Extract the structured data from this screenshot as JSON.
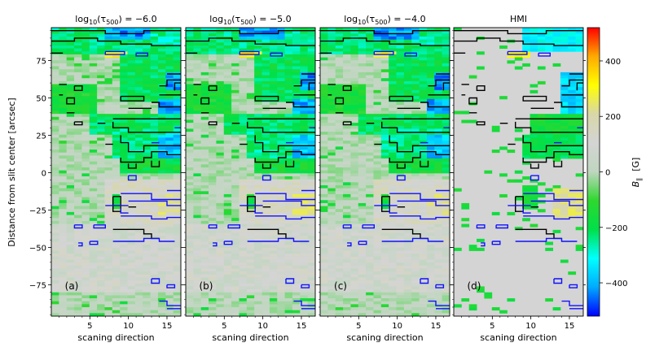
{
  "chart_data": {
    "type": "heatmap",
    "ylabel": "Distance from slit center [arcsec]",
    "colorbar": {
      "label": "B∥ [G]",
      "label_main": "B",
      "label_sub": "∥",
      "label_unit": "[G]",
      "range": [
        -520,
        520
      ],
      "ticks": [
        "400",
        "200",
        "0",
        "−200",
        "−400"
      ],
      "tick_values": [
        400,
        200,
        0,
        -200,
        -400
      ],
      "stops": [
        "#0000ff",
        "#00aaff",
        "#00ffff",
        "#00e04a",
        "#2ed82e",
        "#bfd6bf",
        "#d4d4d4",
        "#d8d7a8",
        "#ffff00",
        "#ffaa00",
        "#ff0000"
      ]
    },
    "contour_levels_description": "black: B∥ = −100 G, blue: B∥ = +100 G",
    "xlim": [
      0,
      16.8
    ],
    "ylim": [
      -96,
      97
    ],
    "x_ticks": [
      "5",
      "10",
      "15"
    ],
    "x_tick_values": [
      5,
      10,
      15
    ],
    "y_ticks": [
      "75",
      "50",
      "25",
      "0",
      "−25",
      "−50",
      "−75"
    ],
    "y_tick_values": [
      75,
      50,
      25,
      0,
      -25,
      -50,
      -75
    ],
    "panels": [
      {
        "title": "log10(τ500) = −6.0",
        "title_pre": "log",
        "title_sub": "10",
        "title_post": "(τ",
        "title_sub2": "500",
        "title_end": ") = −6.0",
        "label": "(a)",
        "xlabel": "scaning direction"
      },
      {
        "title": "log10(τ500) = −5.0",
        "title_pre": "log",
        "title_sub": "10",
        "title_post": "(τ",
        "title_sub2": "500",
        "title_end": ") = −5.0",
        "label": "(b)",
        "xlabel": "scaning direction"
      },
      {
        "title": "log10(τ500) = −4.0",
        "title_pre": "log",
        "title_sub": "10",
        "title_post": "(τ",
        "title_sub2": "500",
        "title_end": ") = −4.0",
        "label": "(c)",
        "xlabel": "scaning direction"
      },
      {
        "title": "HMI",
        "label": "(d)",
        "xlabel": "scaning direction"
      }
    ],
    "field_regions": [
      {
        "x0": 0,
        "x1": 16.8,
        "y0": 80,
        "y1": 97,
        "value": -230
      },
      {
        "x0": 7,
        "x1": 13,
        "y0": 90,
        "y1": 97,
        "value": -420
      },
      {
        "x0": 13,
        "x1": 16.8,
        "y0": 85,
        "y1": 94,
        "value": -260
      },
      {
        "x0": 7,
        "x1": 9.5,
        "y0": 78,
        "y1": 82,
        "value": 300
      },
      {
        "x0": 9,
        "x1": 16.8,
        "y0": 48,
        "y1": 80,
        "value": -200
      },
      {
        "x0": 15,
        "x1": 16.8,
        "y0": 55,
        "y1": 68,
        "value": -420
      },
      {
        "x0": 14,
        "x1": 16.8,
        "y0": 40,
        "y1": 50,
        "value": -400
      },
      {
        "x0": 0,
        "x1": 6,
        "y0": 40,
        "y1": 60,
        "value": -150
      },
      {
        "x0": 5,
        "x1": 16.8,
        "y0": 25,
        "y1": 40,
        "value": -210
      },
      {
        "x0": 8,
        "x1": 16.8,
        "y0": 10,
        "y1": 30,
        "value": -240
      },
      {
        "x0": 14,
        "x1": 16.8,
        "y0": 10,
        "y1": 25,
        "value": -380
      },
      {
        "x0": 9,
        "x1": 16.8,
        "y0": 0,
        "y1": 10,
        "value": -170
      },
      {
        "x0": 7,
        "x1": 16.8,
        "y0": -35,
        "y1": -5,
        "value": 130
      },
      {
        "x0": 14,
        "x1": 16.8,
        "y0": -28,
        "y1": -14,
        "value": 200
      },
      {
        "x0": 7.5,
        "x1": 9,
        "y0": -25,
        "y1": -15,
        "value": -160
      },
      {
        "x0": 0,
        "x1": 16.8,
        "y0": -80,
        "y1": -35,
        "value": 80
      }
    ],
    "hmi_regions": [
      {
        "x0": 9,
        "x1": 16.8,
        "y0": 82,
        "y1": 97,
        "value": -320
      },
      {
        "x0": 7,
        "x1": 9.5,
        "y0": 78,
        "y1": 82,
        "value": 300
      },
      {
        "x0": 14,
        "x1": 16.8,
        "y0": 40,
        "y1": 68,
        "value": -360
      },
      {
        "x0": 10,
        "x1": 16.8,
        "y0": 25,
        "y1": 40,
        "value": -160
      },
      {
        "x0": 9,
        "x1": 16.8,
        "y0": 10,
        "y1": 25,
        "value": -200
      },
      {
        "x0": 9,
        "x1": 11,
        "y0": -25,
        "y1": -8,
        "value": -160
      },
      {
        "x0": 13,
        "x1": 16.8,
        "y0": -30,
        "y1": -10,
        "value": 230
      }
    ],
    "neg_contours": [
      [
        [
          0,
          95
        ],
        [
          7,
          95
        ],
        [
          7,
          93
        ],
        [
          12,
          93
        ],
        [
          12,
          95
        ],
        [
          16.8,
          95
        ]
      ],
      [
        [
          0,
          88
        ],
        [
          3,
          88
        ],
        [
          3,
          90
        ],
        [
          6,
          90
        ],
        [
          6,
          88
        ],
        [
          9,
          88
        ],
        [
          9,
          86
        ],
        [
          13,
          86
        ],
        [
          13,
          85
        ],
        [
          16.8,
          85
        ]
      ],
      [
        [
          15,
          66
        ],
        [
          16.8,
          66
        ]
      ],
      [
        [
          14,
          58
        ],
        [
          15,
          58
        ],
        [
          15,
          62
        ],
        [
          16.8,
          62
        ]
      ],
      [
        [
          16,
          55
        ],
        [
          16,
          60
        ],
        [
          16.8,
          60
        ]
      ],
      [
        [
          14,
          52
        ],
        [
          16.8,
          52
        ]
      ],
      [
        [
          1,
          59
        ],
        [
          2,
          59
        ]
      ],
      [
        [
          3,
          58
        ],
        [
          4,
          58
        ],
        [
          4,
          55
        ],
        [
          3,
          55
        ],
        [
          3,
          58
        ]
      ],
      [
        [
          1,
          52
        ],
        [
          1.5,
          52
        ]
      ],
      [
        [
          2,
          50
        ],
        [
          3,
          50
        ],
        [
          3,
          46
        ],
        [
          2,
          46
        ],
        [
          2,
          50
        ]
      ],
      [
        [
          9,
          51
        ],
        [
          12,
          51
        ],
        [
          12,
          48
        ],
        [
          9,
          48
        ],
        [
          9,
          51
        ]
      ],
      [
        [
          13,
          47
        ],
        [
          14,
          47
        ],
        [
          14,
          44
        ],
        [
          16.8,
          44
        ]
      ],
      [
        [
          10,
          43
        ],
        [
          13,
          43
        ]
      ],
      [
        [
          2,
          40
        ],
        [
          3,
          40
        ]
      ],
      [
        [
          8,
          36
        ],
        [
          16.8,
          36
        ]
      ],
      [
        [
          3,
          34
        ],
        [
          4,
          34
        ],
        [
          4,
          32
        ],
        [
          3,
          32
        ],
        [
          3,
          34
        ]
      ],
      [
        [
          6,
          33
        ],
        [
          7,
          33
        ]
      ],
      [
        [
          8,
          34
        ],
        [
          8,
          30
        ],
        [
          10,
          30
        ],
        [
          10,
          27
        ],
        [
          16.8,
          27
        ]
      ],
      [
        [
          9,
          25
        ],
        [
          9,
          20
        ],
        [
          10,
          20
        ],
        [
          10,
          14
        ],
        [
          12,
          14
        ],
        [
          12,
          18
        ],
        [
          16.8,
          18
        ]
      ],
      [
        [
          7,
          19
        ],
        [
          8,
          19
        ]
      ],
      [
        [
          9,
          10
        ],
        [
          9,
          7
        ],
        [
          12,
          7
        ],
        [
          12,
          10
        ],
        [
          13,
          10
        ],
        [
          13,
          14
        ],
        [
          15,
          14
        ],
        [
          15,
          12
        ],
        [
          16.8,
          12
        ]
      ],
      [
        [
          10,
          6
        ],
        [
          10,
          3
        ],
        [
          11,
          3
        ],
        [
          11,
          6
        ]
      ],
      [
        [
          13,
          8
        ],
        [
          13,
          4
        ],
        [
          14,
          4
        ],
        [
          14,
          8
        ]
      ],
      [
        [
          8,
          -16
        ],
        [
          8,
          -26
        ],
        [
          9,
          -26
        ],
        [
          9,
          -16
        ],
        [
          8,
          -16
        ]
      ],
      [
        [
          10,
          -23
        ],
        [
          11,
          -23
        ]
      ],
      [
        [
          8,
          -38
        ],
        [
          12,
          -38
        ],
        [
          12,
          -41
        ],
        [
          13,
          -41
        ],
        [
          13,
          -44
        ],
        [
          14,
          -44
        ]
      ],
      [
        [
          0,
          80
        ],
        [
          1.5,
          80
        ]
      ]
    ],
    "pos_contours": [
      [
        [
          7,
          81
        ],
        [
          9.5,
          81
        ],
        [
          9.5,
          79
        ],
        [
          7,
          79
        ],
        [
          7,
          81
        ]
      ],
      [
        [
          11,
          80
        ],
        [
          12.5,
          80
        ],
        [
          12.5,
          78
        ],
        [
          11,
          78
        ],
        [
          11,
          80
        ]
      ],
      [
        [
          16,
          30
        ],
        [
          16.8,
          30
        ]
      ],
      [
        [
          13,
          20
        ],
        [
          14,
          20
        ]
      ],
      [
        [
          10,
          -2
        ],
        [
          11,
          -2
        ],
        [
          11,
          -5
        ],
        [
          10,
          -5
        ],
        [
          10,
          -2
        ]
      ],
      [
        [
          15,
          -12
        ],
        [
          16.8,
          -12
        ]
      ],
      [
        [
          9,
          -14
        ],
        [
          13,
          -14
        ],
        [
          13,
          -18
        ],
        [
          16.8,
          -18
        ]
      ],
      [
        [
          10,
          -19
        ],
        [
          15,
          -19
        ],
        [
          15,
          -22
        ],
        [
          16.8,
          -22
        ]
      ],
      [
        [
          7,
          -22
        ],
        [
          10,
          -22
        ]
      ],
      [
        [
          9,
          -24
        ],
        [
          9,
          -27
        ],
        [
          10,
          -27
        ]
      ],
      [
        [
          9,
          -29
        ],
        [
          13,
          -29
        ],
        [
          13,
          -31
        ],
        [
          15,
          -31
        ],
        [
          15,
          -30
        ],
        [
          16.8,
          -30
        ]
      ],
      [
        [
          3,
          -35
        ],
        [
          4,
          -35
        ],
        [
          4,
          -37
        ],
        [
          3,
          -37
        ],
        [
          3,
          -35
        ]
      ],
      [
        [
          5.5,
          -35
        ],
        [
          7,
          -35
        ],
        [
          7,
          -37
        ],
        [
          5.5,
          -37
        ],
        [
          5.5,
          -35
        ]
      ],
      [
        [
          3.5,
          -47
        ],
        [
          4,
          -47
        ],
        [
          4,
          -49
        ],
        [
          3.5,
          -49
        ]
      ],
      [
        [
          5,
          -46
        ],
        [
          6,
          -46
        ],
        [
          6,
          -48
        ],
        [
          5,
          -48
        ],
        [
          5,
          -46
        ]
      ],
      [
        [
          8,
          -46
        ],
        [
          12,
          -46
        ],
        [
          12,
          -44
        ],
        [
          14,
          -44
        ],
        [
          14,
          -46
        ],
        [
          16,
          -46
        ]
      ],
      [
        [
          13,
          -71
        ],
        [
          14,
          -71
        ],
        [
          14,
          -74
        ],
        [
          13,
          -74
        ],
        [
          13,
          -71
        ]
      ],
      [
        [
          15,
          -75
        ],
        [
          16,
          -75
        ],
        [
          16,
          -77
        ],
        [
          15,
          -77
        ],
        [
          15,
          -75
        ]
      ],
      [
        [
          14,
          -86
        ],
        [
          15,
          -86
        ],
        [
          15,
          -89
        ],
        [
          16.8,
          -89
        ]
      ],
      [
        [
          15,
          -91
        ],
        [
          16.8,
          -91
        ]
      ]
    ]
  }
}
